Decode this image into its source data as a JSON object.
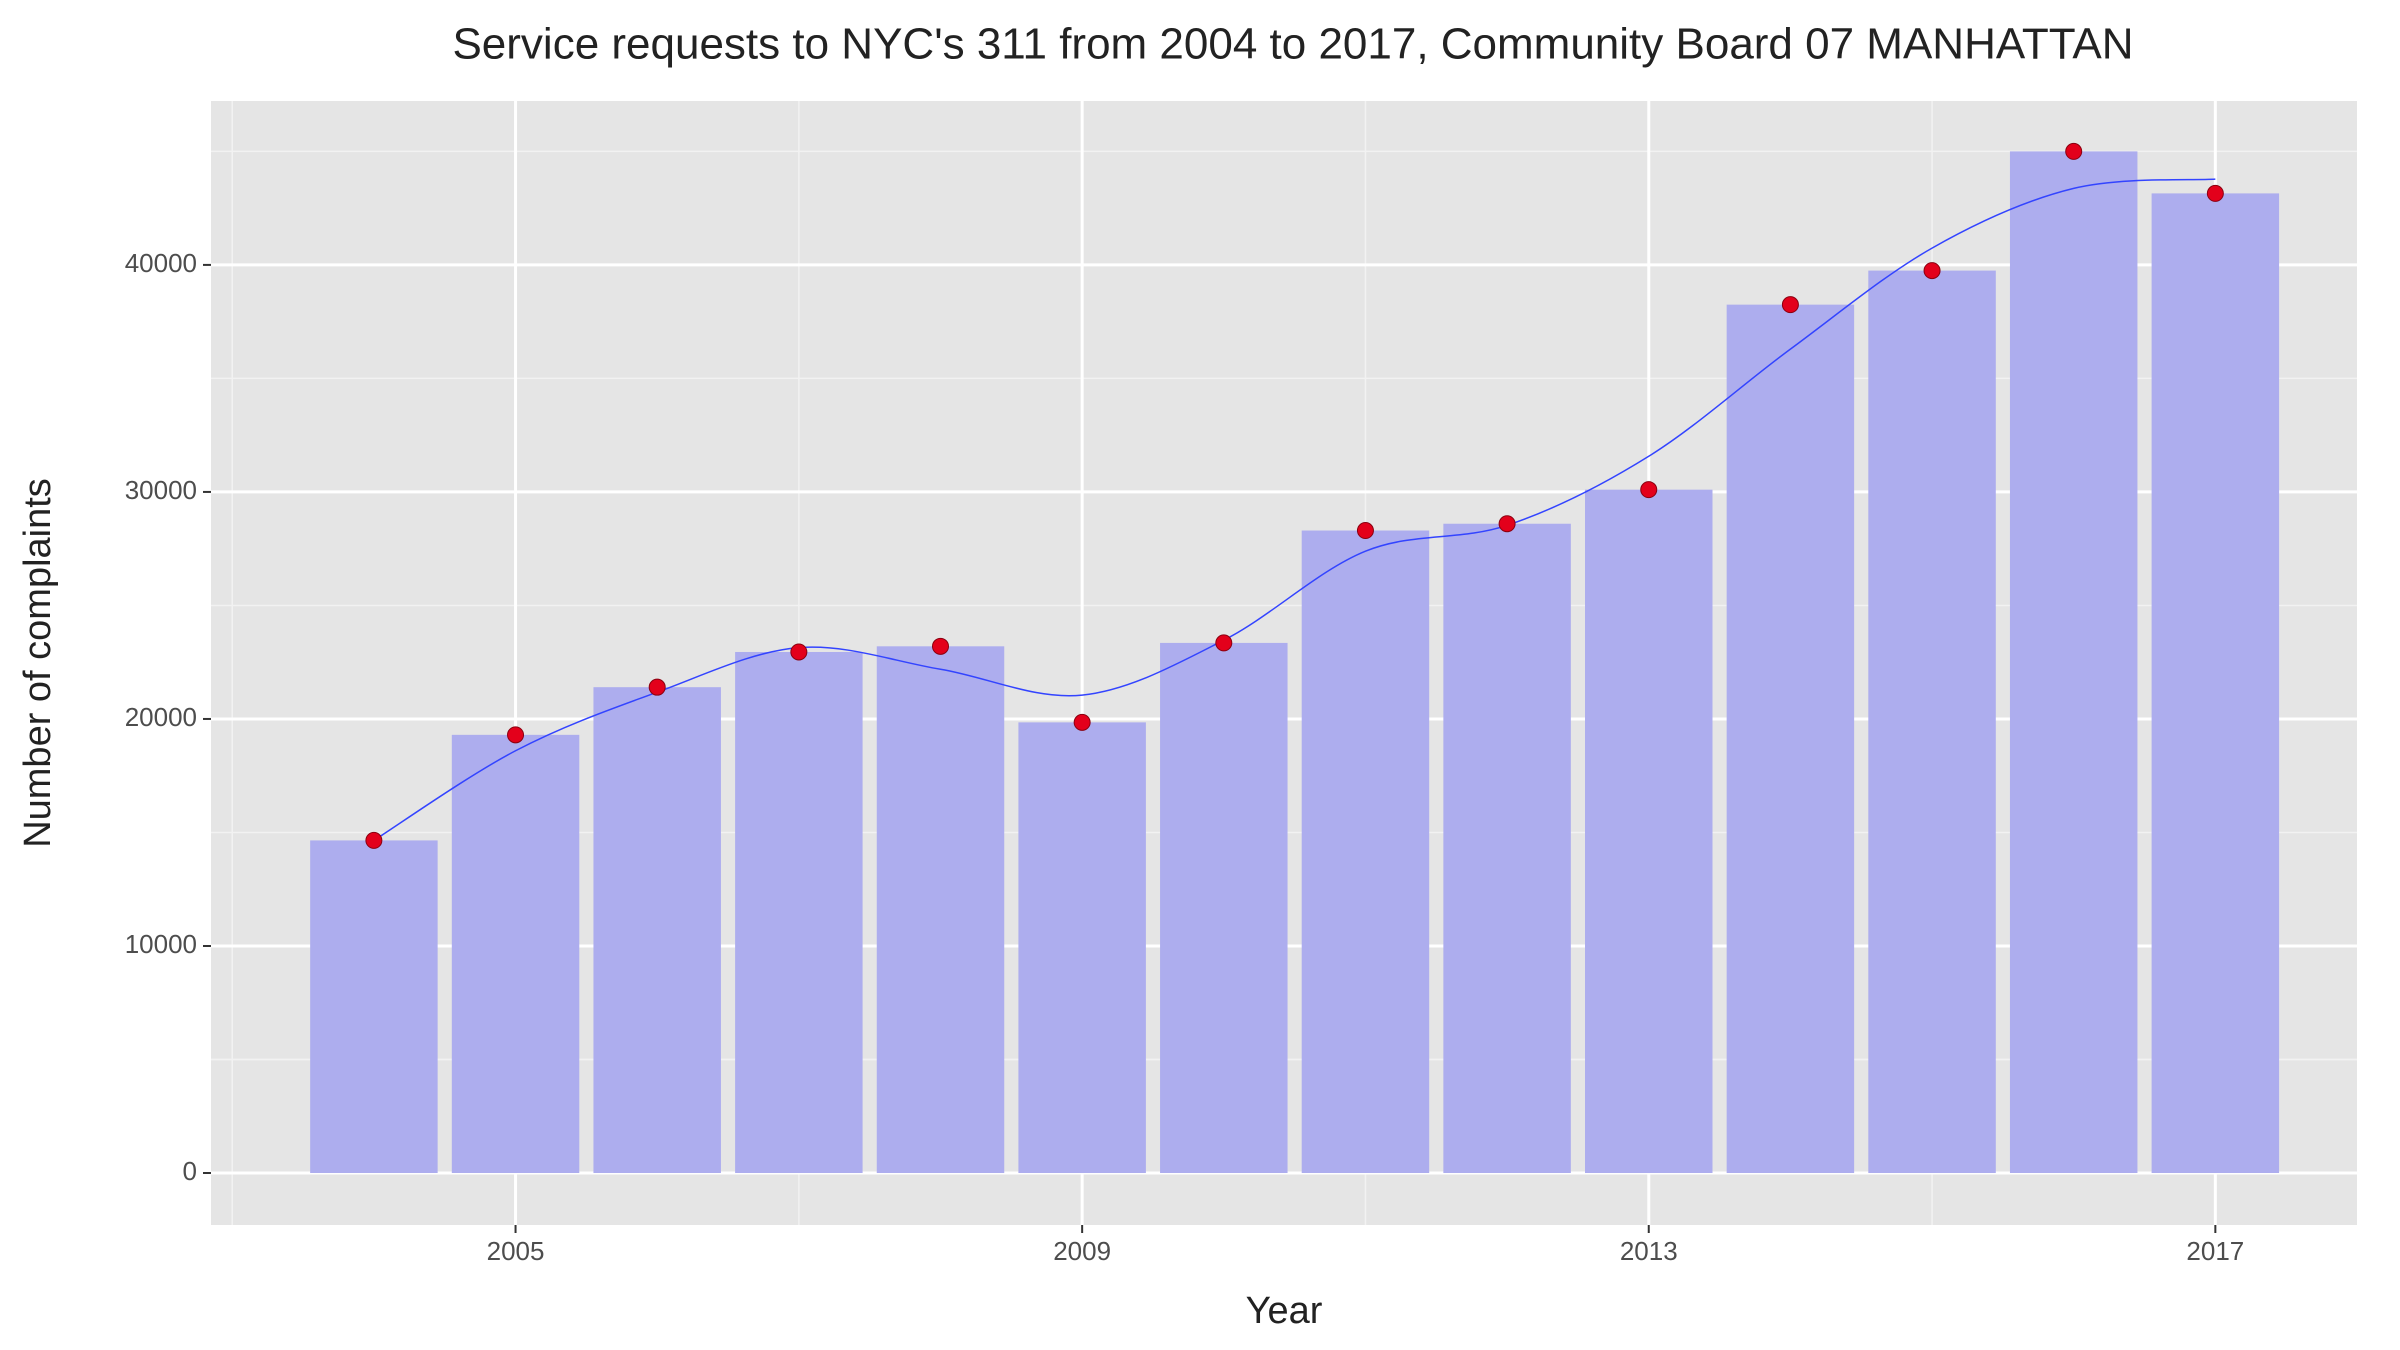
{
  "chart_data": {
    "type": "bar",
    "title": "Service requests to NYC's 311 from 2004 to 2017, Community Board 07 MANHATTAN",
    "x_label": "Year",
    "y_label": "Number of complaints",
    "x": [
      2004,
      2005,
      2006,
      2007,
      2008,
      2009,
      2010,
      2011,
      2012,
      2013,
      2014,
      2015,
      2016,
      2017
    ],
    "values": [
      14650,
      19300,
      21400,
      22950,
      23200,
      19850,
      23350,
      28300,
      28600,
      30100,
      38250,
      39750,
      45000,
      43150
    ],
    "color": "#adadee",
    "point_color": "#e3001b",
    "smooth": {
      "color": "#3344ff",
      "values": [
        14650,
        18600,
        21180,
        23140,
        22190,
        21050,
        23470,
        27390,
        28530,
        31570,
        36290,
        40740,
        43370,
        43780
      ]
    },
    "xlim": [
      2002.85,
      2018.0
    ],
    "xticks": [
      2005,
      2009,
      2013,
      2017
    ],
    "ylim": [
      -2290,
      47220
    ],
    "yticks": [
      0,
      10000,
      20000,
      30000,
      40000
    ],
    "grid": true
  }
}
